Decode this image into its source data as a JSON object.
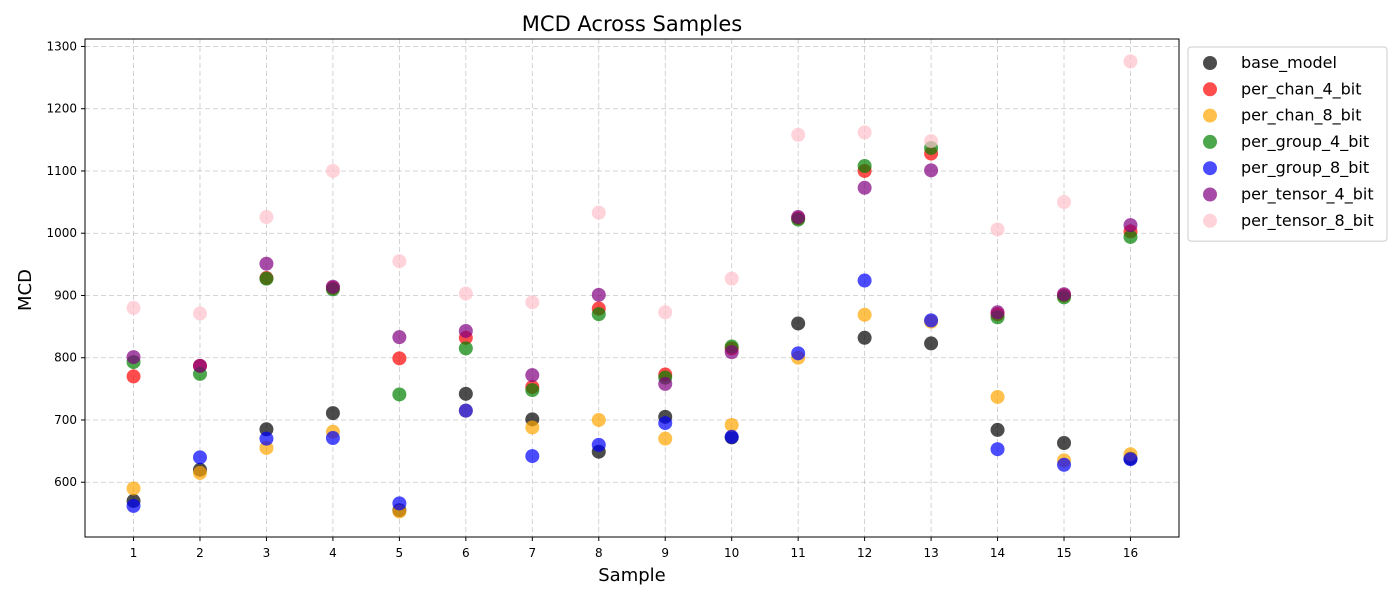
{
  "chart_data": {
    "type": "scatter",
    "title": "MCD Across Samples",
    "xlabel": "Sample",
    "ylabel": "MCD",
    "x": [
      1,
      2,
      3,
      4,
      5,
      6,
      7,
      8,
      9,
      10,
      11,
      12,
      13,
      14,
      15,
      16
    ],
    "x_ticks": [
      "1",
      "2",
      "3",
      "4",
      "5",
      "6",
      "7",
      "8",
      "9",
      "10",
      "11",
      "12",
      "13",
      "14",
      "15",
      "16"
    ],
    "xlim": [
      0.27,
      16.73
    ],
    "ylim": [
      512,
      1312
    ],
    "y_ticks": [
      600,
      700,
      800,
      900,
      1000,
      1100,
      1200,
      1300
    ],
    "grid": true,
    "legend_position": "outside-right",
    "series": [
      {
        "name": "base_model",
        "color": "#000000",
        "values": [
          570,
          620,
          685,
          711,
          555,
          742,
          701,
          649,
          705,
          672,
          855,
          832,
          823,
          684,
          663,
          638
        ]
      },
      {
        "name": "per_chan_4_bit",
        "color": "#ff0000",
        "values": [
          770,
          787,
          928,
          912,
          799,
          832,
          753,
          879,
          773,
          815,
          1024,
          1100,
          1128,
          870,
          900,
          1003
        ]
      },
      {
        "name": "per_chan_8_bit",
        "color": "#ffa500",
        "values": [
          590,
          615,
          655,
          681,
          553,
          715,
          688,
          700,
          670,
          692,
          800,
          869,
          858,
          737,
          635,
          645
        ]
      },
      {
        "name": "per_group_4_bit",
        "color": "#008000",
        "values": [
          793,
          774,
          927,
          910,
          741,
          815,
          748,
          870,
          768,
          818,
          1022,
          1108,
          1137,
          865,
          897,
          994
        ]
      },
      {
        "name": "per_group_8_bit",
        "color": "#0000ff",
        "values": [
          562,
          640,
          670,
          671,
          566,
          715,
          642,
          660,
          695,
          673,
          807,
          924,
          860,
          653,
          628,
          637
        ]
      },
      {
        "name": "per_tensor_4_bit",
        "color": "#800080",
        "values": [
          801,
          787,
          951,
          914,
          833,
          843,
          772,
          901,
          758,
          809,
          1026,
          1073,
          1101,
          873,
          902,
          1013
        ]
      },
      {
        "name": "per_tensor_8_bit",
        "color": "#ffc0cb",
        "values": [
          880,
          871,
          1026,
          1100,
          955,
          903,
          889,
          1033,
          873,
          927,
          1158,
          1162,
          1148,
          1006,
          1050,
          1276
        ]
      }
    ]
  }
}
